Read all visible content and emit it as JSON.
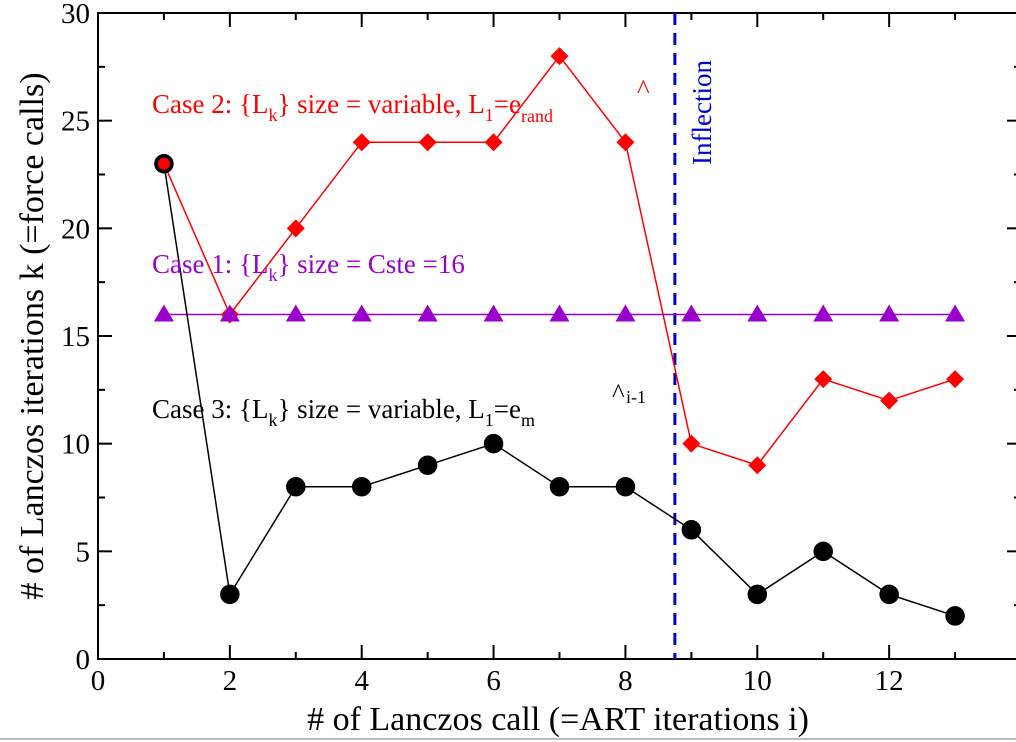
{
  "chart_data": {
    "type": "line",
    "xlabel": "# of Lanczos call (=ART iterations i)",
    "ylabel": "# of Lanczos iterations k (=force calls)",
    "xlim": [
      0,
      14
    ],
    "ylim": [
      0,
      30
    ],
    "xticks": [
      "0",
      "2",
      "4",
      "6",
      "8",
      "10",
      "12"
    ],
    "yticks": [
      "0",
      "5",
      "10",
      "15",
      "20",
      "25",
      "30"
    ],
    "grid": false,
    "x": [
      1,
      2,
      3,
      4,
      5,
      6,
      7,
      8,
      9,
      10,
      11,
      12,
      13
    ],
    "series": [
      {
        "id": "case2",
        "label": {
          "prefix": "Case 2: {L",
          "sub1": "k",
          "mid": "} size = variable, L",
          "sub2": "1",
          "eq": "=",
          "base": "e",
          "hat": "^",
          "sub3": "rand",
          "sup3": ""
        },
        "color": "#ff0000",
        "marker": "diamond",
        "values": [
          23,
          16,
          20,
          24,
          24,
          24,
          28,
          24,
          10,
          9,
          13,
          12,
          13
        ]
      },
      {
        "id": "case1",
        "label": {
          "prefix": "Case 1: {L",
          "sub1": "k",
          "mid": "} size = Cste =16"
        },
        "color": "#9900cc",
        "marker": "triangle",
        "values": [
          16,
          16,
          16,
          16,
          16,
          16,
          16,
          16,
          16,
          16,
          16,
          16,
          16
        ]
      },
      {
        "id": "case3",
        "label": {
          "prefix": "Case 3: {L",
          "sub1": "k",
          "mid": "} size = variable, L",
          "sub2": "1",
          "eq": "=",
          "base": "e",
          "hat": "^",
          "sub3": "m",
          "sup3": "i-1"
        },
        "color": "#000000",
        "marker": "circle",
        "values": [
          23,
          3,
          8,
          8,
          9,
          10,
          8,
          8,
          6,
          3,
          5,
          3,
          2
        ]
      }
    ],
    "annotations": [
      {
        "text": "Inflection",
        "x": 8.75,
        "color": "#0000cc",
        "style": "dashed-vertical"
      }
    ]
  }
}
